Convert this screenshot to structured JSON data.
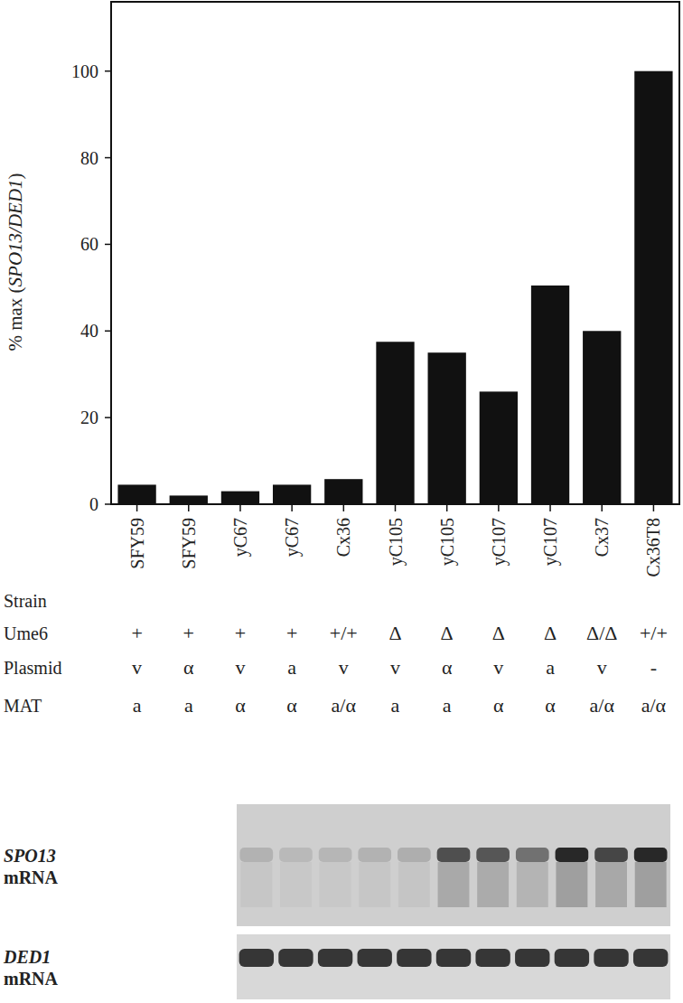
{
  "chart_data": {
    "type": "bar",
    "y_label": "% max (SPO13/DED1)",
    "categories": [
      "SFY59",
      "SFY59",
      "yC67",
      "yC67",
      "Cx36",
      "yC105",
      "yC105",
      "yC107",
      "yC107",
      "Cx37",
      "Cx36T8"
    ],
    "values": [
      4.5,
      2,
      3,
      4.5,
      5.8,
      37.5,
      35,
      26,
      50.5,
      40,
      100
    ],
    "color": "#111111",
    "ylim": [
      0,
      116
    ],
    "yticks": [
      0,
      20,
      40,
      60,
      80,
      100
    ],
    "grid": false,
    "strain_label": "Strain",
    "table": [
      {
        "label": "Ume6",
        "values": [
          "+",
          "+",
          "+",
          "+",
          "+/+",
          "Δ",
          "Δ",
          "Δ",
          "Δ",
          "Δ/Δ",
          "+/+"
        ]
      },
      {
        "label": "Plasmid",
        "values": [
          "v",
          "α",
          "v",
          "a",
          "v",
          "v",
          "α",
          "v",
          "a",
          "v",
          "-"
        ]
      },
      {
        "label": "MAT",
        "values": [
          "a",
          "a",
          "α",
          "α",
          "a/α",
          "a",
          "a",
          "α",
          "α",
          "a/α",
          "a/α"
        ]
      }
    ],
    "blots": [
      {
        "label": "SPO13 mRNA"
      },
      {
        "label": "DED1 mRNA"
      }
    ]
  }
}
